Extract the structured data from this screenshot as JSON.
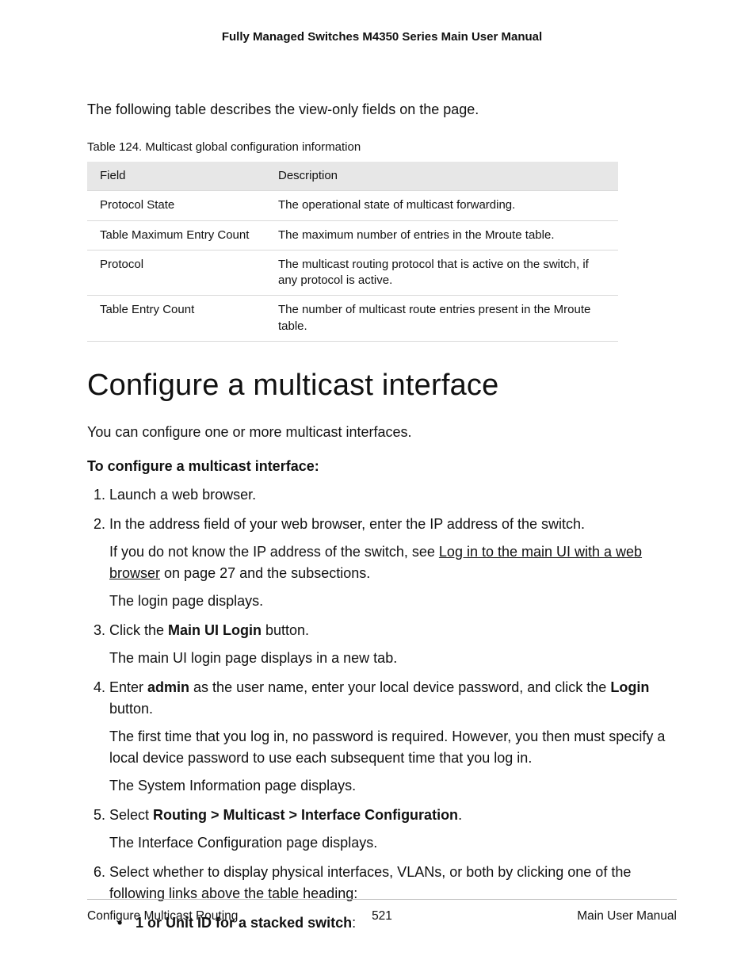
{
  "running_head": "Fully Managed Switches M4350 Series Main User Manual",
  "intro_para": "The following table describes the view-only fields on the page.",
  "table_caption": "Table 124. Multicast global configuration information",
  "table": {
    "headers": {
      "field": "Field",
      "desc": "Description"
    },
    "rows": [
      {
        "field": "Protocol State",
        "desc": "The operational state of multicast forwarding."
      },
      {
        "field": "Table Maximum Entry Count",
        "desc": "The maximum number of entries in the Mroute table."
      },
      {
        "field": "Protocol",
        "desc": "The multicast routing protocol that is active on the switch, if any protocol is active."
      },
      {
        "field": "Table Entry Count",
        "desc": "The number of multicast route entries present in the Mroute table."
      }
    ]
  },
  "section_title": "Configure a multicast interface",
  "lead_para": "You can configure one or more multicast interfaces.",
  "task_title": "To configure a multicast interface:",
  "steps": {
    "s1": "Launch a web browser.",
    "s2": "In the address field of your web browser, enter the IP address of the switch.",
    "s2a_pre": "If you do not know the IP address of the switch, see ",
    "s2a_link": "Log in to the main UI with a web browser",
    "s2a_post": " on page 27 and the subsections.",
    "s2b": "The login page displays.",
    "s3_pre": "Click the ",
    "s3_bold": "Main UI Login",
    "s3_post": " button.",
    "s3a": "The main UI login page displays in a new tab.",
    "s4_pre": "Enter ",
    "s4_bold1": "admin",
    "s4_mid": " as the user name, enter your local device password, and click the ",
    "s4_bold2": "Login",
    "s4_post": " button.",
    "s4a": "The first time that you log in, no password is required. However, you then must specify a local device password to use each subsequent time that you log in.",
    "s4b": "The System Information page displays.",
    "s5_pre": "Select ",
    "s5_bold": "Routing > Multicast > Interface Configuration",
    "s5_post": ".",
    "s5a": "The Interface Configuration page displays.",
    "s6": "Select whether to display physical interfaces, VLANs, or both by clicking one of the following links above the table heading:",
    "s6_bullet_bold": "1 or Unit ID for a stacked switch",
    "s6_bullet_post": ":"
  },
  "footer": {
    "left": "Configure Multicast Routing",
    "mid": "521",
    "right": "Main User Manual"
  }
}
